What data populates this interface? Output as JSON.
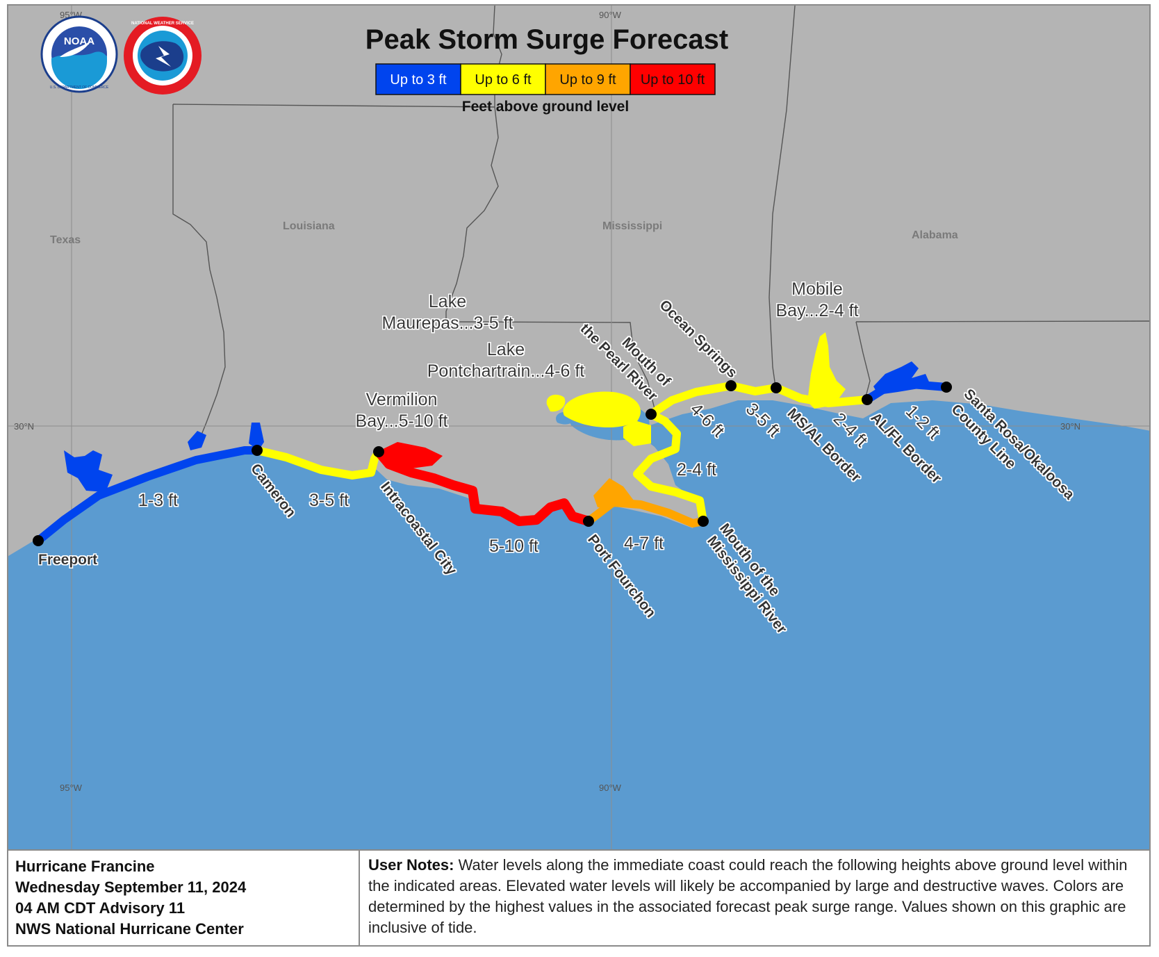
{
  "title": "Peak Storm Surge Forecast",
  "logos": {
    "noaa_text": "NOAA",
    "noaa_ring_text": "U.S. DEPARTMENT OF COMMERCE",
    "nws_ring_text": "NATIONAL WEATHER SERVICE"
  },
  "legend": {
    "items": [
      {
        "label": "Up to 3 ft",
        "color": "#0044ee"
      },
      {
        "label": "Up to 6 ft",
        "color": "#ffff00"
      },
      {
        "label": "Up to 9 ft",
        "color": "#ffa500"
      },
      {
        "label": "Up to 10 ft",
        "color": "#ff0000"
      }
    ],
    "caption": "Feet above ground level"
  },
  "grid_labels": {
    "lon_95_top": "95°W",
    "lon_90_top": "90°W",
    "lon_95_bottom": "95°W",
    "lon_90_bottom": "90°W",
    "lat_30_left": "30°N",
    "lat_30_right": "30°N"
  },
  "states": {
    "texas": "Texas",
    "louisiana": "Louisiana",
    "mississippi": "Mississippi",
    "alabama": "Alabama"
  },
  "locations": {
    "freeport": "Freeport",
    "cameron": "Cameron",
    "intracoastal_city": "Intracoastal City",
    "port_fourchon": "Port Fourchon",
    "mouth_mississippi_1": "Mouth of the",
    "mouth_mississippi_2": "Mississippi River",
    "mouth_pearl_1": "Mouth of",
    "mouth_pearl_2": "the Pearl River",
    "ocean_springs": "Ocean Springs",
    "ms_al_border": "MS/AL Border",
    "al_fl_border": "AL/FL Border",
    "santa_rosa_1": "Santa Rosa/Okaloosa",
    "santa_rosa_2": "County Line"
  },
  "segment_values": {
    "freeport_cameron": "1-3 ft",
    "cameron_intracoastal": "3-5 ft",
    "intracoastal_fourchon": "5-10 ft",
    "fourchon_mouth": "4-7 ft",
    "mouth_pearl": "2-4 ft",
    "pearl_ocean": "4-6 ft",
    "ocean_msal": "3-5 ft",
    "msal_alfl": "2-4 ft",
    "alfl_santarosa": "1-2 ft"
  },
  "water_bodies": {
    "vermilion_1": "Vermilion",
    "vermilion_2": "Bay...5-10 ft",
    "maurepas_1": "Lake",
    "maurepas_2": "Maurepas...3-5 ft",
    "pontchartrain_1": "Lake",
    "pontchartrain_2": "Pontchartrain...4-6 ft",
    "mobile_1": "Mobile",
    "mobile_2": "Bay...2-4 ft"
  },
  "info": {
    "storm": "Hurricane Francine",
    "date": "Wednesday September 11, 2024",
    "advisory": "04 AM CDT Advisory 11",
    "center": "NWS National Hurricane Center"
  },
  "notes": {
    "heading": "User Notes:",
    "text": "Water levels along the immediate coast could reach the following heights above ground level within the indicated areas. Elevated water levels will likely be accompanied by large and destructive waves. Colors are determined by the highest values in the associated forecast peak surge range. Values shown on this graphic are inclusive of tide."
  },
  "colors": {
    "land": "#b4b4b4",
    "water": "#5b9bd0",
    "border": "#555555",
    "surge_blue": "#0044ee",
    "surge_yellow": "#ffff00",
    "surge_orange": "#ffa500",
    "surge_red": "#ff0000"
  }
}
